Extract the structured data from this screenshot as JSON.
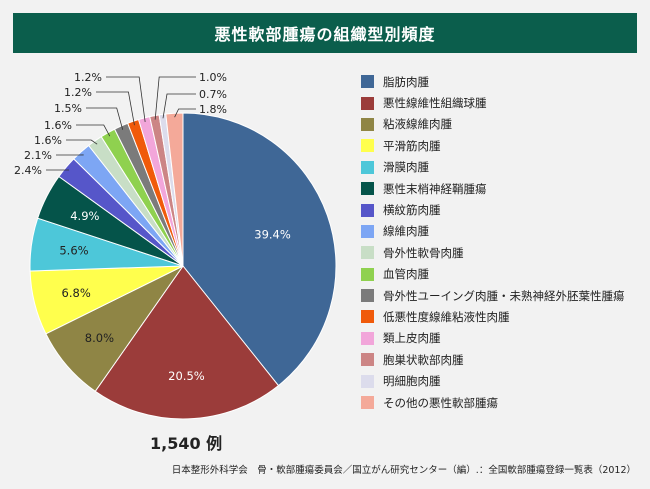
{
  "chart_data": {
    "type": "pie",
    "title": "悪性軟部腫瘍の組織型別頻度",
    "total_label": "1,540 例",
    "source": "日本整形外科学会　骨・軟部腫瘍委員会／国立がん研究センター（編）.：全国軟部腫瘍登録一覧表（2012）",
    "legend_position": "right",
    "slices": [
      {
        "label": "脂肪肉腫",
        "value": 39.4,
        "value_label": "39.4%",
        "color": "#3f6796"
      },
      {
        "label": "悪性線維性組織球腫",
        "value": 20.5,
        "value_label": "20.5%",
        "color": "#9b3c3a"
      },
      {
        "label": "粘液線維肉腫",
        "value": 8.0,
        "value_label": "8.0%",
        "color": "#8f8545"
      },
      {
        "label": "平滑筋肉腫",
        "value": 6.8,
        "value_label": "6.8%",
        "color": "#ffff4d"
      },
      {
        "label": "滑膜肉腫",
        "value": 5.6,
        "value_label": "5.6%",
        "color": "#4dc7d9"
      },
      {
        "label": "悪性末梢神経鞘腫瘍",
        "value": 4.9,
        "value_label": "4.9%",
        "color": "#05544a"
      },
      {
        "label": "横紋筋肉腫",
        "value": 2.4,
        "value_label": "2.4%",
        "color": "#5656c9"
      },
      {
        "label": "線維肉腫",
        "value": 2.1,
        "value_label": "2.1%",
        "color": "#7da6f4"
      },
      {
        "label": "骨外性軟骨肉腫",
        "value": 1.6,
        "value_label": "1.6%",
        "color": "#c8dec6"
      },
      {
        "label": "血管肉腫",
        "value": 1.6,
        "value_label": "1.6%",
        "color": "#8fd14f"
      },
      {
        "label": "骨外性ユーイング肉腫・未熟神経外胚葉性腫瘍",
        "value": 1.5,
        "value_label": "1.5%",
        "color": "#7b7b7b"
      },
      {
        "label": "低悪性度線維粘液性肉腫",
        "value": 1.2,
        "value_label": "1.2%",
        "color": "#f05a0a"
      },
      {
        "label": "類上皮肉腫",
        "value": 1.2,
        "value_label": "1.2%",
        "color": "#f2a6da"
      },
      {
        "label": "胞巣状軟部肉腫",
        "value": 1.0,
        "value_label": "1.0%",
        "color": "#cc8585"
      },
      {
        "label": "明細胞肉腫",
        "value": 0.7,
        "value_label": "0.7%",
        "color": "#dcdcec"
      },
      {
        "label": "その他の悪性軟部腫瘍",
        "value": 1.8,
        "value_label": "1.8%",
        "color": "#f4a999"
      }
    ]
  }
}
